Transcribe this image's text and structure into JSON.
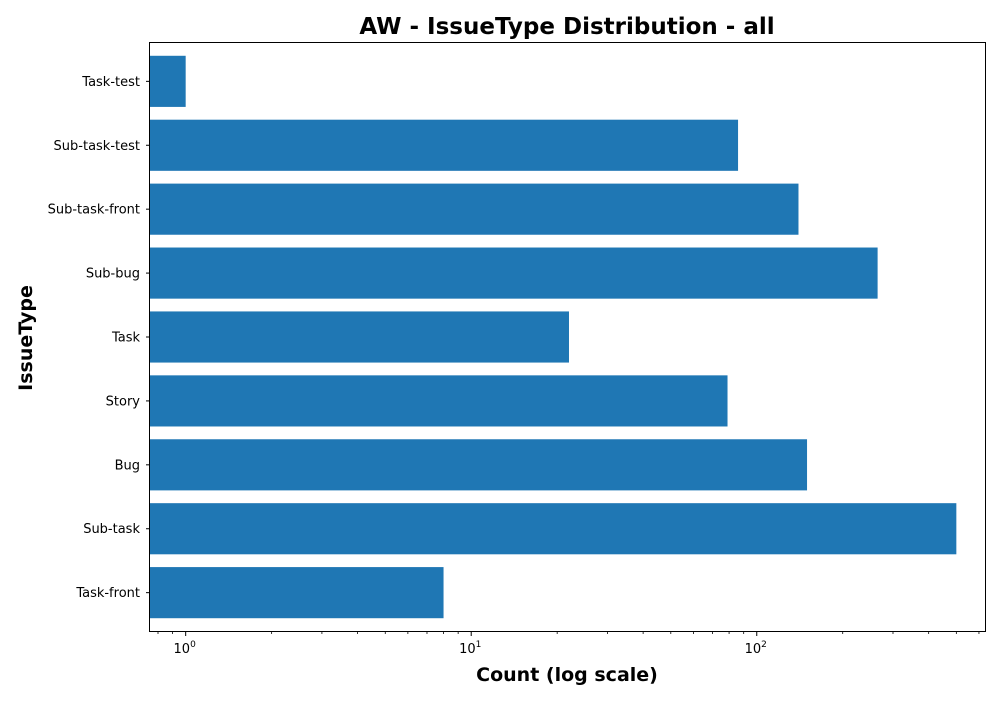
{
  "chart_data": {
    "type": "bar",
    "orientation": "horizontal",
    "title": "AW - IssueType Distribution - all",
    "xlabel": "Count (log scale)",
    "ylabel": "IssueType",
    "xscale": "log",
    "xlim": [
      0.75,
      630
    ],
    "x_ticks": [
      {
        "base": "10",
        "exp": "0",
        "value": 1
      },
      {
        "base": "10",
        "exp": "1",
        "value": 10
      },
      {
        "base": "10",
        "exp": "2",
        "value": 100
      }
    ],
    "categories": [
      "Task-front",
      "Sub-task",
      "Bug",
      "Story",
      "Task",
      "Sub-bug",
      "Sub-task-front",
      "Sub-task-test",
      "Task-test"
    ],
    "values": [
      8,
      500,
      150,
      79,
      22,
      265,
      140,
      86,
      1
    ],
    "color": "#1f77b4",
    "grid": false,
    "legend": "none"
  }
}
